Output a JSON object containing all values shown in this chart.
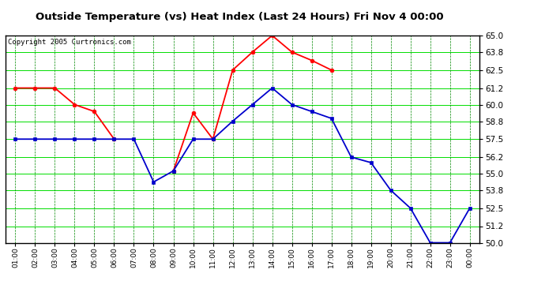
{
  "title": "Outside Temperature (vs) Heat Index (Last 24 Hours) Fri Nov 4 00:00",
  "copyright": "Copyright 2005 Curtronics.com",
  "x_labels": [
    "01:00",
    "02:00",
    "03:00",
    "04:00",
    "05:00",
    "06:00",
    "07:00",
    "08:00",
    "09:00",
    "10:00",
    "11:00",
    "12:00",
    "13:00",
    "14:00",
    "15:00",
    "16:00",
    "17:00",
    "18:00",
    "19:00",
    "20:00",
    "21:00",
    "22:00",
    "23:00",
    "00:00"
  ],
  "red_data": [
    61.2,
    61.2,
    61.2,
    60.0,
    59.5,
    57.5,
    null,
    null,
    55.2,
    59.4,
    57.5,
    62.5,
    63.8,
    65.0,
    63.8,
    63.2,
    62.5,
    null,
    null,
    null,
    null,
    null,
    null,
    null
  ],
  "blue_data": [
    57.5,
    57.5,
    57.5,
    57.5,
    57.5,
    57.5,
    57.5,
    54.4,
    55.2,
    57.5,
    57.5,
    58.8,
    60.0,
    61.2,
    60.0,
    59.5,
    59.0,
    56.2,
    55.8,
    53.8,
    52.5,
    50.0,
    50.0,
    52.5
  ],
  "ylim_min": 50.0,
  "ylim_max": 65.0,
  "yticks": [
    50.0,
    51.2,
    52.5,
    53.8,
    55.0,
    56.2,
    57.5,
    58.8,
    60.0,
    61.2,
    62.5,
    63.8,
    65.0
  ],
  "plot_bg_color": "#ffffff",
  "fig_bg_color": "#ffffff",
  "grid_color_h": "#00dd00",
  "grid_color_v": "#008800",
  "red_line_color": "#ff0000",
  "blue_line_color": "#0000cc",
  "title_color": "#000000",
  "copyright_color": "#000000",
  "border_color": "#000000",
  "tick_area_bg": "#222222"
}
